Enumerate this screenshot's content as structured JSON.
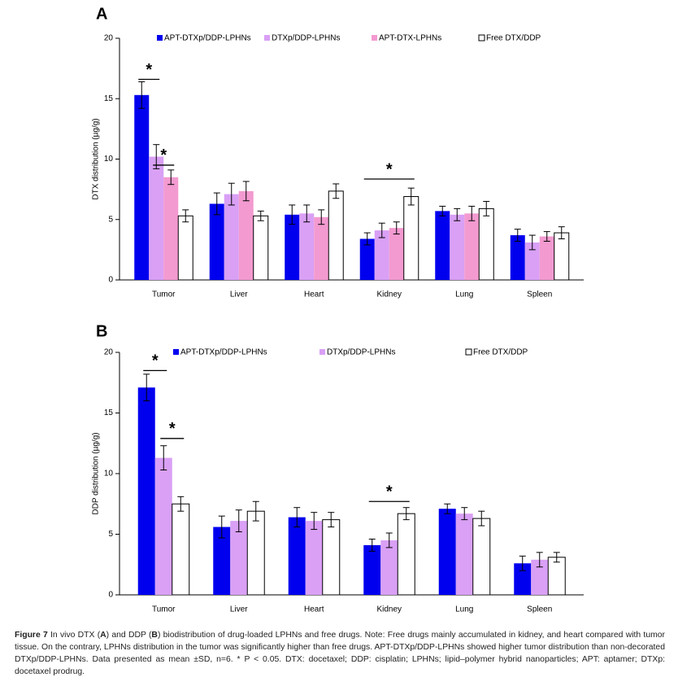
{
  "chart_data": [
    {
      "type": "bar",
      "panel_label": "A",
      "ylabel": "DTX distribution (µg/g)",
      "categories": [
        "Tumor",
        "Liver",
        "Heart",
        "Kidney",
        "Lung",
        "Spleen"
      ],
      "series": [
        {
          "name": "APT-DTXp/DDP-LPHNs",
          "color": "#0000ee",
          "values": [
            15.3,
            6.3,
            5.4,
            3.4,
            5.7,
            3.7
          ],
          "errors": [
            1.1,
            0.9,
            0.8,
            0.5,
            0.4,
            0.5
          ]
        },
        {
          "name": "DTXp/DDP-LPHNs",
          "color": "#d9a0f5",
          "values": [
            10.2,
            7.1,
            5.5,
            4.1,
            5.4,
            3.1
          ],
          "errors": [
            1.0,
            0.9,
            0.7,
            0.6,
            0.5,
            0.6
          ]
        },
        {
          "name": "APT-DTX-LPHNs",
          "color": "#f39ad0",
          "values": [
            8.5,
            7.35,
            5.2,
            4.3,
            5.5,
            3.6
          ],
          "errors": [
            0.6,
            0.8,
            0.6,
            0.5,
            0.6,
            0.4
          ]
        },
        {
          "name": "Free DTX/DDP",
          "color": "#ffffff",
          "values": [
            5.3,
            5.3,
            7.35,
            6.9,
            5.9,
            3.9
          ],
          "errors": [
            0.5,
            0.4,
            0.6,
            0.7,
            0.6,
            0.5
          ]
        }
      ],
      "ylim": [
        0,
        20
      ],
      "yticks": [
        0,
        5,
        10,
        15,
        20
      ],
      "annotations": [
        {
          "text": "*",
          "category": 0,
          "from_series": 0,
          "to_series": 1,
          "y": 16.6
        },
        {
          "text": "*",
          "category": 0,
          "from_series": 1,
          "to_series": 2,
          "y": 9.5
        },
        {
          "text": "*",
          "category": 3,
          "from_series": 0,
          "to_series": 3,
          "y": 8.35
        }
      ]
    },
    {
      "type": "bar",
      "panel_label": "B",
      "ylabel": "DDP distribution (µg/g)",
      "categories": [
        "Tumor",
        "Liver",
        "Heart",
        "Kidney",
        "Lung",
        "Spleen"
      ],
      "series": [
        {
          "name": "APT-DTXp/DDP-LPHNs",
          "color": "#0000ee",
          "values": [
            17.1,
            5.6,
            6.4,
            4.1,
            7.1,
            2.6
          ],
          "errors": [
            1.1,
            0.9,
            0.8,
            0.5,
            0.4,
            0.6
          ]
        },
        {
          "name": "DTXp/DDP-LPHNs",
          "color": "#d9a0f5",
          "values": [
            11.3,
            6.1,
            6.1,
            4.5,
            6.7,
            2.9
          ],
          "errors": [
            1.0,
            0.9,
            0.7,
            0.6,
            0.5,
            0.6
          ]
        },
        {
          "name": "Free DTX/DDP",
          "color": "#ffffff",
          "values": [
            7.5,
            6.9,
            6.2,
            6.7,
            6.3,
            3.1
          ],
          "errors": [
            0.6,
            0.8,
            0.6,
            0.5,
            0.6,
            0.4
          ]
        }
      ],
      "ylim": [
        0,
        20
      ],
      "yticks": [
        0,
        5,
        10,
        15,
        20
      ],
      "annotations": [
        {
          "text": "*",
          "category": 0,
          "from_series": 0,
          "to_series": 1,
          "y": 18.5
        },
        {
          "text": "*",
          "category": 0,
          "from_series": 1,
          "to_series": 2,
          "y": 12.9
        },
        {
          "text": "*",
          "category": 3,
          "from_series": 0,
          "to_series": 2,
          "y": 7.7
        }
      ]
    }
  ],
  "caption": {
    "runs": [
      {
        "text": "Figure 7",
        "bold": true
      },
      {
        "text": " In vivo DTX ("
      },
      {
        "text": "A",
        "bold": true
      },
      {
        "text": ") and DDP ("
      },
      {
        "text": "B",
        "bold": true
      },
      {
        "text": ") biodistribution of drug-loaded LPHNs and free drugs. Note: Free drugs mainly accumulated in kidney, and heart compared with tumor tissue. On the contrary, LPHNs distribution in the tumor was significantly higher than free drugs. APT-DTXp/DDP-LPHNs showed higher tumor distribution than non-decorated DTXp/DDP-LPHNs. Data presented as mean ±SD, n=6. * P < 0.05. DTX: docetaxel; DDP: cisplatin; LPHNs; lipid–polymer hybrid nanoparticles; APT: aptamer; DTXp: docetaxel prodrug."
      }
    ]
  }
}
